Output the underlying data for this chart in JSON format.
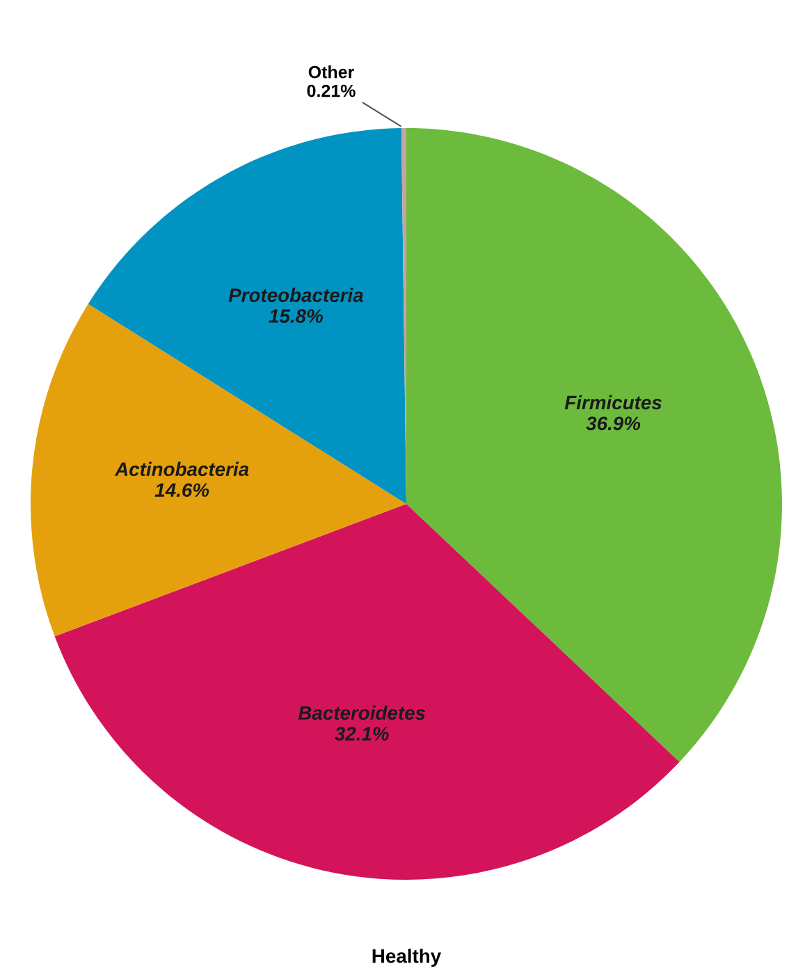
{
  "chart_data": {
    "type": "pie",
    "title": "Healthy",
    "categories": [
      "Firmicutes",
      "Bacteroidetes",
      "Actinobacteria",
      "Proteobacteria",
      "Other"
    ],
    "values": [
      36.9,
      32.1,
      14.6,
      15.8,
      0.21
    ],
    "colors": [
      "#6cbb3c",
      "#d4145a",
      "#e5a00d",
      "#0193c2",
      "#c9a3a3"
    ],
    "value_labels": [
      "36.9%",
      "32.1%",
      "14.6%",
      "15.8%",
      "0.21%"
    ]
  }
}
